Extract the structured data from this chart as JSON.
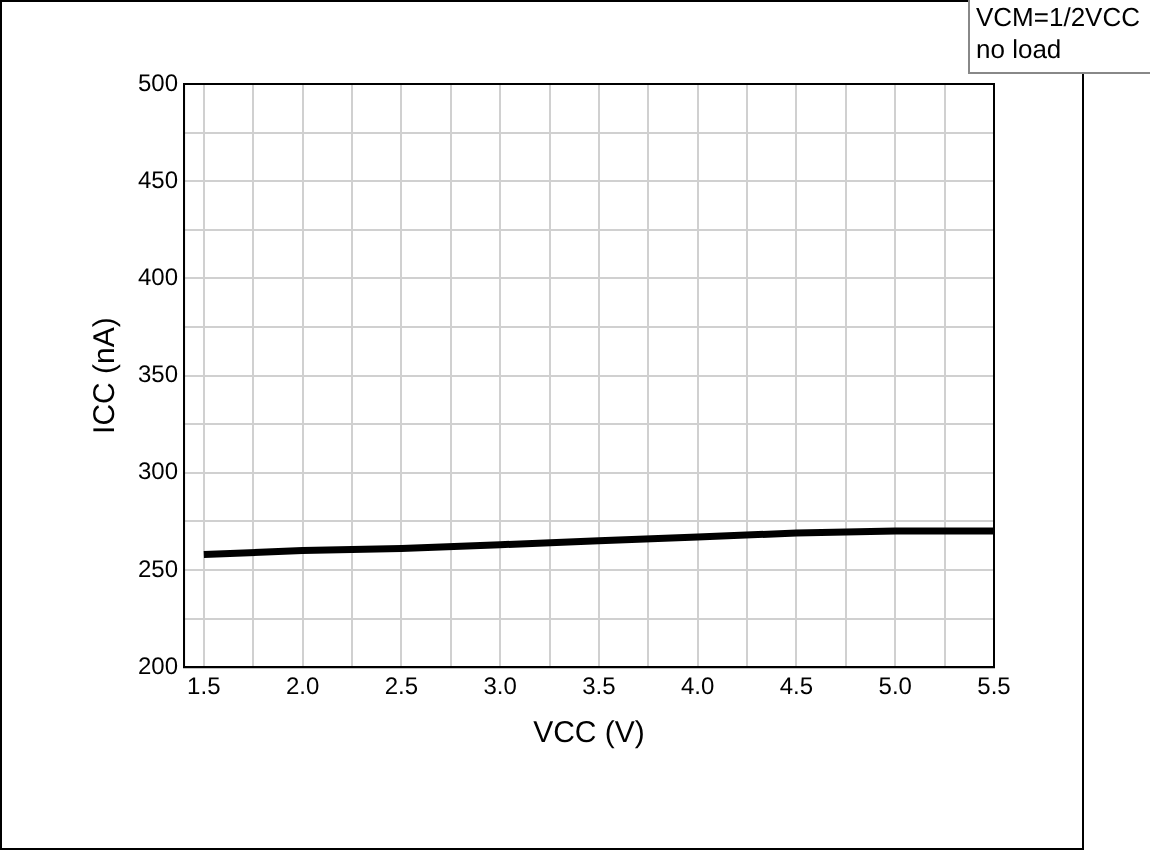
{
  "chart_data": {
    "type": "line",
    "xlabel": "VCC (V)",
    "ylabel": "ICC (nA)",
    "annotations": [
      "VCM=1/2VCC",
      "no load"
    ],
    "x": [
      1.5,
      2.0,
      2.5,
      3.0,
      3.5,
      4.0,
      4.5,
      5.0,
      5.5
    ],
    "series": [
      {
        "color": "#000000",
        "values": [
          258,
          260,
          261,
          263,
          265,
          267,
          269,
          270,
          270
        ]
      }
    ],
    "xlim": [
      1.4,
      5.5
    ],
    "xticks": [
      1.5,
      {
        "value": 1.75,
        "label": null
      },
      "2.0",
      {
        "value": 2.25,
        "label": null
      },
      2.5,
      {
        "value": 2.75,
        "label": null
      },
      "3.0",
      {
        "value": 3.25,
        "label": null
      },
      3.5,
      {
        "value": 3.75,
        "label": null
      },
      "4.0",
      {
        "value": 4.25,
        "label": null
      },
      4.5,
      {
        "value": 4.75,
        "label": null
      },
      "5.0",
      {
        "value": 5.25,
        "label": null
      },
      5.5
    ],
    "ylim": [
      200,
      500
    ],
    "yticks": [
      200,
      {
        "value": 225,
        "label": null
      },
      250,
      {
        "value": 275,
        "label": null
      },
      300,
      {
        "value": 325,
        "label": null
      },
      350,
      {
        "value": 375,
        "label": null
      },
      400,
      {
        "value": 425,
        "label": null
      },
      450,
      {
        "value": 475,
        "label": null
      },
      500
    ],
    "grid": true,
    "marker": "none",
    "line_style": "solid",
    "legend": false
  }
}
